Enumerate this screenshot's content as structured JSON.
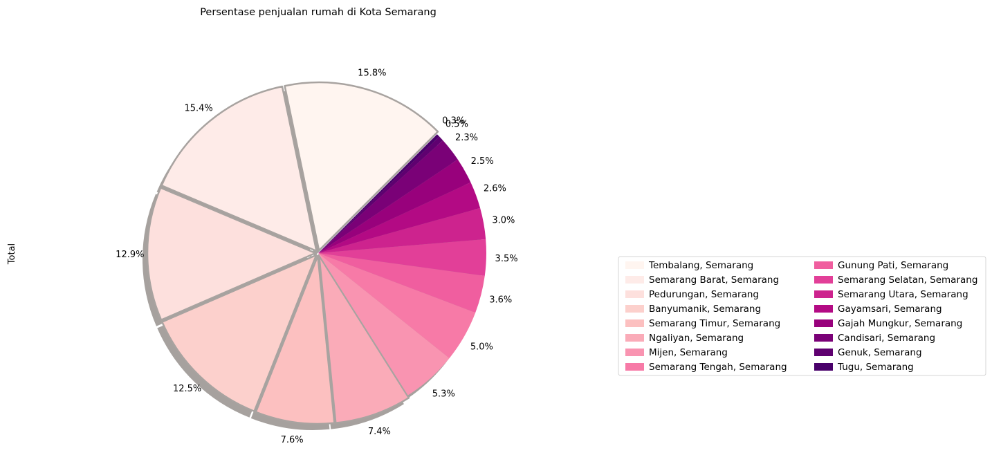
{
  "chart_data": {
    "type": "pie",
    "title": "Persentase penjualan rumah di Kota Semarang",
    "ylabel": "Total",
    "legend_position": "right",
    "legend_columns": 2,
    "shadow": true,
    "start_angle_deg": 45,
    "direction": "counterclockwise",
    "slices": [
      {
        "name": "Tembalang, Semarang",
        "value": 15.8,
        "label": "15.8%",
        "color": "#fff5f0"
      },
      {
        "name": "Semarang Barat, Semarang",
        "value": 15.4,
        "label": "15.4%",
        "color": "#feebe8"
      },
      {
        "name": "Pedurungan, Semarang",
        "value": 12.9,
        "label": "12.9%",
        "color": "#fde0dd"
      },
      {
        "name": "Banyumanik, Semarang",
        "value": 12.5,
        "label": "12.5%",
        "color": "#fcd0cc"
      },
      {
        "name": "Semarang Timur, Semarang",
        "value": 7.6,
        "label": "7.6%",
        "color": "#fcc0c0"
      },
      {
        "name": "Ngaliyan, Semarang",
        "value": 7.4,
        "label": "7.4%",
        "color": "#faabb8"
      },
      {
        "name": "Mijen, Semarang",
        "value": 5.3,
        "label": "5.3%",
        "color": "#f994b1"
      },
      {
        "name": "Semarang Tengah, Semarang",
        "value": 5.0,
        "label": "5.0%",
        "color": "#f77aa7"
      },
      {
        "name": "Gunung Pati, Semarang",
        "value": 3.6,
        "label": "3.6%",
        "color": "#f05e9f"
      },
      {
        "name": "Semarang Selatan, Semarang",
        "value": 3.5,
        "label": "3.5%",
        "color": "#e23f98"
      },
      {
        "name": "Semarang Utara, Semarang",
        "value": 3.0,
        "label": "3.0%",
        "color": "#cd238e"
      },
      {
        "name": "Gayamsari, Semarang",
        "value": 2.6,
        "label": "2.6%",
        "color": "#b30a84"
      },
      {
        "name": "Gajah Mungkur, Semarang",
        "value": 2.5,
        "label": "2.5%",
        "color": "#98017c"
      },
      {
        "name": "Candisari, Semarang",
        "value": 2.3,
        "label": "2.3%",
        "color": "#7a0177"
      },
      {
        "name": "Genuk, Semarang",
        "value": 0.5,
        "label": "0.5%",
        "color": "#5f0070"
      },
      {
        "name": "Tugu, Semarang",
        "value": 0.3,
        "label": "0.3%",
        "color": "#49006a"
      }
    ]
  }
}
